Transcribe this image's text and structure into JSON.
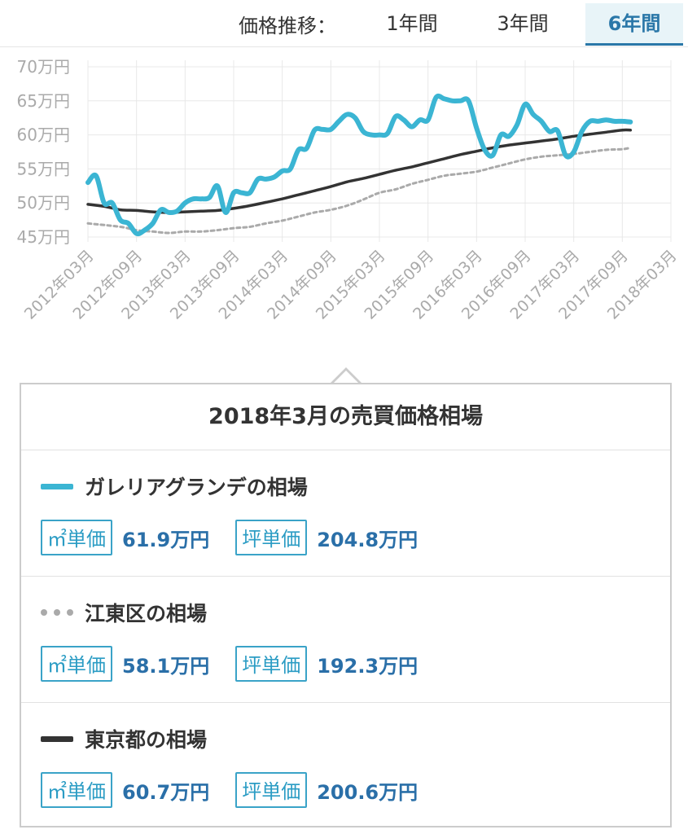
{
  "tabs": {
    "label": "価格推移：",
    "items": [
      {
        "label": "1年間",
        "active": false
      },
      {
        "label": "3年間",
        "active": false
      },
      {
        "label": "6年間",
        "active": true
      }
    ]
  },
  "colors": {
    "galleria": "#3bb5d3",
    "koto": "#aaaaaa",
    "tokyo": "#333333",
    "accent": "#2a77a8"
  },
  "chart_data": {
    "type": "line",
    "title": "",
    "xlabel": "",
    "ylabel": "",
    "ylim": [
      45,
      70
    ],
    "yticks": [
      "45万円",
      "50万円",
      "55万円",
      "60万円",
      "65万円",
      "70万円"
    ],
    "xlim": [
      0,
      72
    ],
    "xticks": [
      "2012年03月",
      "2012年09月",
      "2013年03月",
      "2013年09月",
      "2014年03月",
      "2014年09月",
      "2015年03月",
      "2015年09月",
      "2016年03月",
      "2016年09月",
      "2017年03月",
      "2017年09月",
      "2018年03月"
    ],
    "grid": true,
    "series": [
      {
        "name": "ガレリアグランデの相場",
        "style": "solid-thick",
        "points": [
          [
            0,
            53
          ],
          [
            1,
            54
          ],
          [
            2,
            50
          ],
          [
            3,
            50
          ],
          [
            4,
            47.5
          ],
          [
            5,
            47
          ],
          [
            6,
            45.5
          ],
          [
            7,
            46
          ],
          [
            8,
            47
          ],
          [
            9,
            49
          ],
          [
            10,
            48.6
          ],
          [
            11,
            48.8
          ],
          [
            12,
            50
          ],
          [
            13,
            50.6
          ],
          [
            14,
            50.6
          ],
          [
            15,
            50.8
          ],
          [
            16,
            52.5
          ],
          [
            17,
            48.6
          ],
          [
            18,
            51.5
          ],
          [
            19,
            51.5
          ],
          [
            20,
            51.5
          ],
          [
            21,
            53.5
          ],
          [
            22,
            53.5
          ],
          [
            23,
            53.8
          ],
          [
            24,
            54.7
          ],
          [
            25,
            55
          ],
          [
            26,
            57.8
          ],
          [
            27,
            58
          ],
          [
            28,
            60.7
          ],
          [
            29,
            60.8
          ],
          [
            30,
            60.8
          ],
          [
            31,
            62
          ],
          [
            32,
            63
          ],
          [
            33,
            62.5
          ],
          [
            34,
            60.5
          ],
          [
            35,
            60
          ],
          [
            36,
            60
          ],
          [
            37,
            60.2
          ],
          [
            38,
            62.7
          ],
          [
            39,
            62.2
          ],
          [
            40,
            61.2
          ],
          [
            41,
            62.2
          ],
          [
            42,
            62.2
          ],
          [
            43,
            65.5
          ],
          [
            44,
            65.3
          ],
          [
            45,
            65
          ],
          [
            46,
            65
          ],
          [
            47,
            65
          ],
          [
            48,
            61
          ],
          [
            49,
            57.8
          ],
          [
            50,
            57
          ],
          [
            51,
            60
          ],
          [
            52,
            59.8
          ],
          [
            53,
            61.5
          ],
          [
            54,
            64.5
          ],
          [
            55,
            63
          ],
          [
            56,
            62
          ],
          [
            57,
            60.5
          ],
          [
            58,
            60.6
          ],
          [
            59,
            57
          ],
          [
            60,
            57.5
          ],
          [
            61,
            60.5
          ],
          [
            62,
            62
          ],
          [
            63,
            62
          ],
          [
            64,
            62.2
          ],
          [
            65,
            62
          ],
          [
            66,
            62
          ],
          [
            67,
            61.9
          ]
        ]
      },
      {
        "name": "江東区の相場",
        "style": "dotted",
        "points": [
          [
            0,
            47
          ],
          [
            4,
            46.5
          ],
          [
            6,
            46
          ],
          [
            8,
            45.8
          ],
          [
            10,
            45.6
          ],
          [
            12,
            45.8
          ],
          [
            14,
            45.8
          ],
          [
            16,
            46
          ],
          [
            18,
            46.3
          ],
          [
            20,
            46.5
          ],
          [
            22,
            47
          ],
          [
            24,
            47.4
          ],
          [
            26,
            48
          ],
          [
            28,
            48.6
          ],
          [
            30,
            49
          ],
          [
            32,
            49.6
          ],
          [
            34,
            50.5
          ],
          [
            36,
            51.5
          ],
          [
            38,
            52
          ],
          [
            40,
            52.8
          ],
          [
            42,
            53.4
          ],
          [
            44,
            54
          ],
          [
            46,
            54.3
          ],
          [
            48,
            54.6
          ],
          [
            50,
            55.2
          ],
          [
            52,
            55.8
          ],
          [
            54,
            56.4
          ],
          [
            56,
            56.8
          ],
          [
            58,
            57
          ],
          [
            60,
            57.2
          ],
          [
            62,
            57.5
          ],
          [
            64,
            57.8
          ],
          [
            66,
            57.9
          ],
          [
            67,
            58.1
          ]
        ]
      },
      {
        "name": "東京都の相場",
        "style": "solid",
        "points": [
          [
            0,
            49.8
          ],
          [
            2,
            49.5
          ],
          [
            4,
            49
          ],
          [
            6,
            48.9
          ],
          [
            8,
            48.7
          ],
          [
            10,
            48.6
          ],
          [
            12,
            48.7
          ],
          [
            14,
            48.8
          ],
          [
            16,
            48.9
          ],
          [
            18,
            49.2
          ],
          [
            20,
            49.6
          ],
          [
            22,
            50.1
          ],
          [
            24,
            50.6
          ],
          [
            26,
            51.2
          ],
          [
            28,
            51.8
          ],
          [
            30,
            52.4
          ],
          [
            32,
            53.1
          ],
          [
            34,
            53.6
          ],
          [
            36,
            54.2
          ],
          [
            38,
            54.8
          ],
          [
            40,
            55.3
          ],
          [
            42,
            55.9
          ],
          [
            44,
            56.5
          ],
          [
            46,
            57.1
          ],
          [
            48,
            57.6
          ],
          [
            50,
            58.1
          ],
          [
            52,
            58.5
          ],
          [
            54,
            58.8
          ],
          [
            56,
            59.1
          ],
          [
            58,
            59.4
          ],
          [
            60,
            59.8
          ],
          [
            62,
            60.1
          ],
          [
            64,
            60.4
          ],
          [
            66,
            60.7
          ],
          [
            67,
            60.7
          ]
        ]
      }
    ]
  },
  "panel": {
    "title": "2018年3月の売買価格相場",
    "sections": [
      {
        "name": "ガレリアグランデの相場",
        "m2_label": "㎡単価",
        "m2_value": "61.9万円",
        "tsubo_label": "坪単価",
        "tsubo_value": "204.8万円"
      },
      {
        "name": "江東区の相場",
        "m2_label": "㎡単価",
        "m2_value": "58.1万円",
        "tsubo_label": "坪単価",
        "tsubo_value": "192.3万円"
      },
      {
        "name": "東京都の相場",
        "m2_label": "㎡単価",
        "m2_value": "60.7万円",
        "tsubo_label": "坪単価",
        "tsubo_value": "200.6万円"
      }
    ]
  }
}
